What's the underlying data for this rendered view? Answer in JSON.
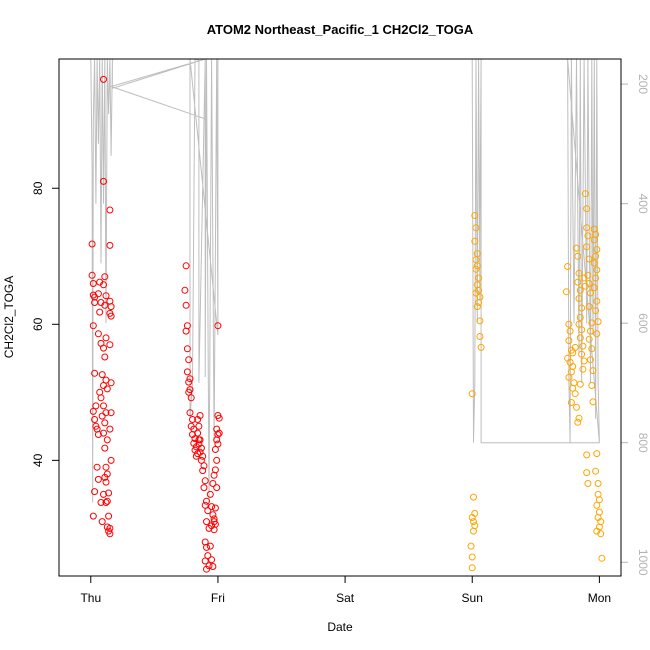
{
  "chart_data": {
    "type": "scatter",
    "title": "ATOM2 Northeast_Pacific_1 CH2Cl2_TOGA",
    "xlabel": "Date",
    "ylabel": "CH2Cl2_TOGA",
    "x_ticks": [
      "Thu",
      "Fri",
      "Sat",
      "Sun",
      "Mon"
    ],
    "xlim_days": [
      -0.25,
      4.17
    ],
    "ylim": [
      23,
      99
    ],
    "y_ticks": [
      40,
      60,
      80
    ],
    "y2_ticks": [
      200,
      400,
      600,
      800,
      1000
    ],
    "y2lim": [
      158,
      1023
    ],
    "grid": false,
    "legend": "none",
    "colors": {
      "red": "#ff0000",
      "orange": "#ffa500",
      "line": "#bebebe",
      "axis2": "#b3b3b3"
    },
    "series": [
      {
        "color": "red",
        "points": [
          [
            0.01,
            71.8
          ],
          [
            0.01,
            67.2
          ],
          [
            0.02,
            66
          ],
          [
            0.02,
            64.3
          ],
          [
            0.03,
            64
          ],
          [
            0.03,
            63.2
          ],
          [
            0.02,
            59.8
          ],
          [
            0.03,
            52.8
          ],
          [
            0.04,
            48
          ],
          [
            0.02,
            47.2
          ],
          [
            0.03,
            46
          ],
          [
            0.04,
            45
          ],
          [
            0.05,
            44.6
          ],
          [
            0.06,
            43.8
          ],
          [
            0.03,
            35.4
          ],
          [
            0.02,
            31.8
          ],
          [
            0.05,
            39
          ],
          [
            0.06,
            37.2
          ],
          [
            0.07,
            66.2
          ],
          [
            0.06,
            64.5
          ],
          [
            0.08,
            63.2
          ],
          [
            0.07,
            61.8
          ],
          [
            0.06,
            58.6
          ],
          [
            0.08,
            57.2
          ],
          [
            0.09,
            52.6
          ],
          [
            0.07,
            50
          ],
          [
            0.08,
            49.2
          ],
          [
            0.1,
            48
          ],
          [
            0.09,
            46.5
          ],
          [
            0.1,
            44
          ],
          [
            0.11,
            41.8
          ],
          [
            0.1,
            35
          ],
          [
            0.08,
            33.8
          ],
          [
            0.09,
            31
          ],
          [
            0.1,
            96
          ],
          [
            0.1,
            81
          ],
          [
            0.11,
            67
          ],
          [
            0.1,
            65.8
          ],
          [
            0.12,
            64.2
          ],
          [
            0.11,
            62.8
          ],
          [
            0.12,
            58
          ],
          [
            0.1,
            56.5
          ],
          [
            0.11,
            55.2
          ],
          [
            0.12,
            51.8
          ],
          [
            0.1,
            51
          ],
          [
            0.13,
            50.5
          ],
          [
            0.12,
            47
          ],
          [
            0.11,
            45.5
          ],
          [
            0.13,
            43
          ],
          [
            0.12,
            39
          ],
          [
            0.13,
            38
          ],
          [
            0.11,
            37.5
          ],
          [
            0.12,
            36.8
          ],
          [
            0.14,
            35.2
          ],
          [
            0.13,
            34
          ],
          [
            0.12,
            33.8
          ],
          [
            0.14,
            31.8
          ],
          [
            0.13,
            30.2
          ],
          [
            0.14,
            29.6
          ],
          [
            0.15,
            29.2
          ],
          [
            0.15,
            76.8
          ],
          [
            0.15,
            71.6
          ],
          [
            0.15,
            63.4
          ],
          [
            0.16,
            62.6
          ],
          [
            0.15,
            61.6
          ],
          [
            0.16,
            61.2
          ],
          [
            0.15,
            57
          ],
          [
            0.16,
            51.4
          ],
          [
            0.16,
            47
          ],
          [
            0.15,
            44.6
          ],
          [
            0.16,
            40
          ],
          [
            0.15,
            30
          ],
          [
            0.75,
            68.6
          ],
          [
            0.74,
            65
          ],
          [
            0.75,
            62.8
          ],
          [
            0.76,
            59.8
          ],
          [
            0.75,
            59
          ],
          [
            0.76,
            56.4
          ],
          [
            0.77,
            54.8
          ],
          [
            0.76,
            53
          ],
          [
            0.78,
            52
          ],
          [
            0.77,
            51.5
          ],
          [
            0.78,
            50.4
          ],
          [
            0.77,
            50
          ],
          [
            0.79,
            49.2
          ],
          [
            0.78,
            47
          ],
          [
            0.8,
            46
          ],
          [
            0.79,
            45
          ],
          [
            0.81,
            44.6
          ],
          [
            0.8,
            43.8
          ],
          [
            0.82,
            43.2
          ],
          [
            0.81,
            42.5
          ],
          [
            0.83,
            42
          ],
          [
            0.82,
            41.5
          ],
          [
            0.84,
            41
          ],
          [
            0.83,
            40.6
          ],
          [
            0.85,
            43
          ],
          [
            0.84,
            44
          ],
          [
            0.86,
            43
          ],
          [
            0.85,
            42.4
          ],
          [
            0.87,
            41.8
          ],
          [
            0.86,
            41.2
          ],
          [
            0.88,
            40.6
          ],
          [
            0.87,
            40
          ],
          [
            0.89,
            39.2
          ],
          [
            0.88,
            38.5
          ],
          [
            0.84,
            46
          ],
          [
            0.86,
            46.6
          ],
          [
            0.85,
            45
          ],
          [
            0.9,
            37
          ],
          [
            0.89,
            36
          ],
          [
            0.91,
            34
          ],
          [
            0.9,
            33.4
          ],
          [
            0.92,
            32.6
          ],
          [
            0.91,
            31
          ],
          [
            0.93,
            30
          ],
          [
            0.9,
            28
          ],
          [
            0.91,
            27.2
          ],
          [
            0.92,
            26
          ],
          [
            0.9,
            25.2
          ],
          [
            0.93,
            24.5
          ],
          [
            0.91,
            24
          ],
          [
            0.94,
            27.4
          ],
          [
            0.95,
            25.4
          ],
          [
            0.96,
            24.4
          ],
          [
            0.94,
            35
          ],
          [
            0.95,
            33.2
          ],
          [
            0.96,
            32
          ],
          [
            0.97,
            31
          ],
          [
            0.95,
            30.4
          ],
          [
            0.97,
            29.8
          ],
          [
            0.98,
            30.6
          ],
          [
            0.96,
            36.6
          ],
          [
            0.97,
            37.8
          ],
          [
            0.98,
            38.6
          ],
          [
            0.99,
            40
          ],
          [
            0.98,
            41.6
          ],
          [
            0.99,
            43
          ],
          [
            1.0,
            42.4
          ],
          [
            1.0,
            43.8
          ],
          [
            0.99,
            44.6
          ],
          [
            1.0,
            46.6
          ],
          [
            1.01,
            46.2
          ],
          [
            1.01,
            44
          ],
          [
            1.0,
            59.8
          ],
          [
            0.99,
            36
          ],
          [
            0.98,
            33
          ],
          [
            0.97,
            31.4
          ]
        ]
      },
      {
        "color": "orange",
        "points": [
          [
            3.0,
            49.8
          ],
          [
            3.02,
            76
          ],
          [
            3.03,
            74.2
          ],
          [
            3.02,
            72.2
          ],
          [
            3.04,
            70.4
          ],
          [
            3.03,
            69.5
          ],
          [
            3.04,
            68.6
          ],
          [
            3.03,
            68.1
          ],
          [
            3.05,
            66.8
          ],
          [
            3.04,
            65.8
          ],
          [
            3.05,
            65
          ],
          [
            3.03,
            64.6
          ],
          [
            3.06,
            64
          ],
          [
            3.05,
            63.2
          ],
          [
            3.04,
            62.6
          ],
          [
            3.06,
            60.5
          ],
          [
            3.06,
            58.2
          ],
          [
            3.07,
            56.6
          ],
          [
            3.0,
            31.6
          ],
          [
            3.01,
            31
          ],
          [
            3.02,
            30.4
          ],
          [
            3.01,
            29.6
          ],
          [
            2.99,
            27.4
          ],
          [
            3.0,
            25.8
          ],
          [
            3.0,
            24.2
          ],
          [
            3.01,
            34.6
          ],
          [
            3.02,
            32.2
          ],
          [
            3.75,
            68.5
          ],
          [
            3.74,
            64.8
          ],
          [
            3.76,
            60
          ],
          [
            3.77,
            59
          ],
          [
            3.76,
            57.6
          ],
          [
            3.78,
            56.2
          ],
          [
            3.75,
            55
          ],
          [
            3.77,
            54.4
          ],
          [
            3.79,
            53.8
          ],
          [
            3.78,
            53
          ],
          [
            3.76,
            52.2
          ],
          [
            3.8,
            51.4
          ],
          [
            3.79,
            50.6
          ],
          [
            3.81,
            49.8
          ],
          [
            3.78,
            48.5
          ],
          [
            3.82,
            47.8
          ],
          [
            3.84,
            46.2
          ],
          [
            3.83,
            45.6
          ],
          [
            3.79,
            55.8
          ],
          [
            3.81,
            56.6
          ],
          [
            3.82,
            71.2
          ],
          [
            3.83,
            70
          ],
          [
            3.84,
            67.5
          ],
          [
            3.83,
            66.2
          ],
          [
            3.85,
            65
          ],
          [
            3.84,
            63.8
          ],
          [
            3.86,
            62.4
          ],
          [
            3.85,
            61
          ],
          [
            3.84,
            60
          ],
          [
            3.86,
            59.2
          ],
          [
            3.85,
            58
          ],
          [
            3.87,
            56.8
          ],
          [
            3.86,
            55.6
          ],
          [
            3.88,
            54.6
          ],
          [
            3.87,
            53.4
          ],
          [
            3.85,
            51.2
          ],
          [
            3.88,
            66.8
          ],
          [
            3.89,
            65.6
          ],
          [
            3.89,
            79.2
          ],
          [
            3.9,
            77
          ],
          [
            3.9,
            74.2
          ],
          [
            3.91,
            73
          ],
          [
            3.9,
            71.4
          ],
          [
            3.92,
            69.6
          ],
          [
            3.91,
            67.2
          ],
          [
            3.92,
            66
          ],
          [
            3.93,
            64.6
          ],
          [
            3.92,
            62.6
          ],
          [
            3.94,
            60.2
          ],
          [
            3.93,
            59
          ],
          [
            3.92,
            57.8
          ],
          [
            3.94,
            56.4
          ],
          [
            3.93,
            54.8
          ],
          [
            3.95,
            53.2
          ],
          [
            3.94,
            51
          ],
          [
            3.95,
            48.6
          ],
          [
            3.96,
            74
          ],
          [
            3.97,
            73.2
          ],
          [
            3.96,
            72.4
          ],
          [
            3.98,
            71
          ],
          [
            3.97,
            70
          ],
          [
            3.96,
            69
          ],
          [
            3.98,
            68
          ],
          [
            3.97,
            66.8
          ],
          [
            3.96,
            65.4
          ],
          [
            3.98,
            63.4
          ],
          [
            3.97,
            62
          ],
          [
            3.99,
            60.4
          ],
          [
            3.98,
            58.6
          ],
          [
            3.9,
            40.8
          ],
          [
            3.9,
            38.2
          ],
          [
            3.91,
            36.6
          ],
          [
            3.98,
            41
          ],
          [
            3.97,
            38.4
          ],
          [
            3.99,
            36.6
          ],
          [
            3.99,
            35
          ],
          [
            4.0,
            34.2
          ],
          [
            3.98,
            33.4
          ],
          [
            4.0,
            32.4
          ],
          [
            3.99,
            31.6
          ],
          [
            4.01,
            31
          ],
          [
            4.0,
            30.2
          ],
          [
            3.98,
            29.6
          ],
          [
            4.01,
            29.2
          ],
          [
            4.02,
            25.6
          ]
        ]
      }
    ],
    "line_pressure": [
      [
        0.0,
        158
      ],
      [
        0.01,
        340
      ],
      [
        0.015,
        900
      ],
      [
        0.02,
        260
      ],
      [
        0.03,
        158
      ],
      [
        0.04,
        400
      ],
      [
        0.05,
        158
      ],
      [
        0.06,
        300
      ],
      [
        0.07,
        158
      ],
      [
        0.08,
        500
      ],
      [
        0.09,
        158
      ],
      [
        0.1,
        400
      ],
      [
        0.11,
        158
      ],
      [
        0.12,
        600
      ],
      [
        0.13,
        158
      ],
      [
        0.14,
        250
      ],
      [
        0.15,
        158
      ],
      [
        0.16,
        320
      ],
      [
        0.17,
        158
      ],
      [
        0.17,
        207
      ],
      [
        0.9,
        158
      ],
      [
        0.9,
        258
      ],
      [
        0.16,
        204
      ],
      [
        0.9,
        158
      ],
      [
        1.0,
        158
      ],
      [
        1.0,
        620
      ],
      [
        0.78,
        158
      ],
      [
        0.78,
        760
      ],
      [
        0.8,
        700
      ],
      [
        0.82,
        158
      ],
      [
        0.85,
        160
      ],
      [
        0.85,
        700
      ],
      [
        0.9,
        158
      ],
      [
        0.9,
        690
      ],
      [
        0.91,
        158
      ],
      [
        0.93,
        900
      ],
      [
        0.95,
        158
      ],
      [
        0.97,
        800
      ],
      [
        0.99,
        158
      ],
      [
        1.0,
        620
      ],
      [
        1.0,
        158
      ],
      [
        1.05,
        158
      ],
      [
        3.8,
        158
      ],
      [
        3.85,
        158
      ],
      [
        3.9,
        158
      ],
      [
        3.95,
        158
      ],
      [
        3.0,
        158
      ],
      [
        3.01,
        800
      ],
      [
        3.02,
        700
      ],
      [
        3.03,
        158
      ],
      [
        3.04,
        600
      ],
      [
        3.05,
        158
      ],
      [
        3.06,
        560
      ],
      [
        3.06,
        450
      ],
      [
        3.07,
        158
      ],
      [
        3.07,
        800
      ],
      [
        4.0,
        800
      ],
      [
        3.75,
        158
      ],
      [
        3.76,
        700
      ],
      [
        3.77,
        800
      ],
      [
        3.78,
        158
      ],
      [
        3.8,
        600
      ],
      [
        3.82,
        158
      ],
      [
        3.84,
        650
      ],
      [
        3.85,
        158
      ],
      [
        3.86,
        700
      ],
      [
        3.88,
        158
      ],
      [
        3.9,
        600
      ],
      [
        3.91,
        158
      ],
      [
        3.93,
        700
      ],
      [
        3.94,
        158
      ],
      [
        3.95,
        620
      ],
      [
        3.96,
        158
      ],
      [
        3.97,
        760
      ],
      [
        3.98,
        158
      ],
      [
        3.99,
        700
      ],
      [
        4.0,
        800
      ]
    ]
  }
}
